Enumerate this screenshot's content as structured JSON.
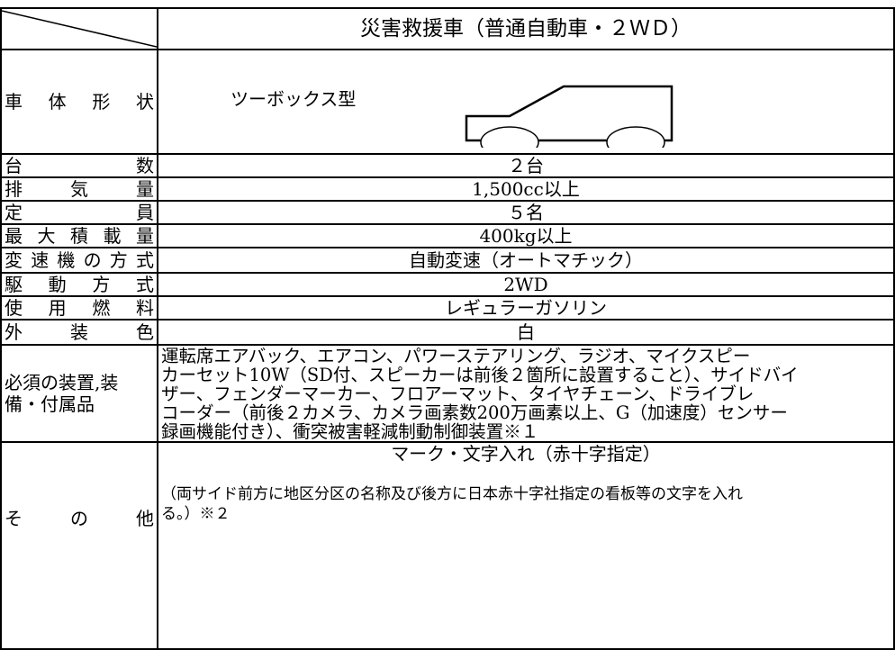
{
  "table": {
    "header": {
      "title": "災害救援車（普通自動車・２ＷＤ）"
    },
    "rows": [
      {
        "label": "車体形状",
        "value": "ツーボックス型"
      },
      {
        "label": "台数",
        "value": "２台"
      },
      {
        "label": "排気量",
        "value": "1,500cc以上"
      },
      {
        "label": "定員",
        "value": "５名"
      },
      {
        "label": "最大積載量",
        "value": "400kg以上"
      },
      {
        "label": "変速機の方式",
        "value": "自動変速（オートマチック）"
      },
      {
        "label": "駆動方式",
        "value": "2WD"
      },
      {
        "label": "使用燃料",
        "value": "レギュラーガソリン"
      },
      {
        "label": "外装色",
        "value": "白"
      },
      {
        "label": "必須の装置,装備・付属品",
        "lines": [
          "運転席エアバック、エアコン、パワーステアリング、ラジオ、マイクスピー",
          "カーセット10W（SD付、スピーカーは前後２箇所に設置すること）、サイドバイ",
          "ザー、フェンダーマーカー、フロアーマット、タイヤチェーン、ドライブレ",
          "コーダー（前後２カメラ、カメラ画素数200万画素以上、G（加速度）センサー",
          "録画機能付き）、衝突被害軽減制動制御装置※１"
        ]
      },
      {
        "label": "その他",
        "value": "マーク・文字入れ（赤十字指定）",
        "lines": [
          "（両サイド前方に地区分区の名称及び後方に日本赤十字社指定の看板等の文字を入れ",
          "る。）※２"
        ]
      }
    ]
  }
}
